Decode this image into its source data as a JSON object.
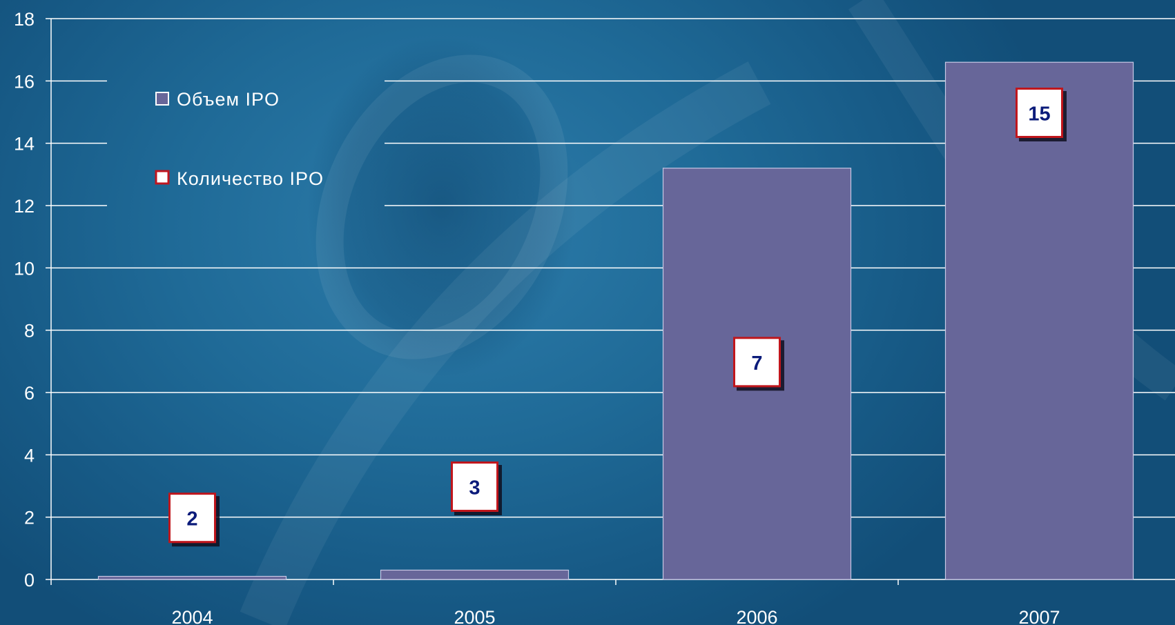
{
  "chart_data": {
    "type": "bar",
    "categories": [
      "2004",
      "2005",
      "2006",
      "2007"
    ],
    "series": [
      {
        "name": "Объем IPO",
        "values": [
          0.1,
          0.3,
          13.2,
          16.6
        ]
      },
      {
        "name": "Количество IPO",
        "values": [
          2,
          3,
          7,
          15
        ]
      }
    ],
    "ylim": [
      0,
      18
    ],
    "yticks": [
      0,
      2,
      4,
      6,
      8,
      10,
      12,
      14,
      16,
      18
    ],
    "grid": true,
    "legend_position": "top-left",
    "colors": {
      "bar": "#676699",
      "label_border": "#c0161f",
      "label_text": "#0b1b7a",
      "grid": "#ffffff"
    }
  }
}
